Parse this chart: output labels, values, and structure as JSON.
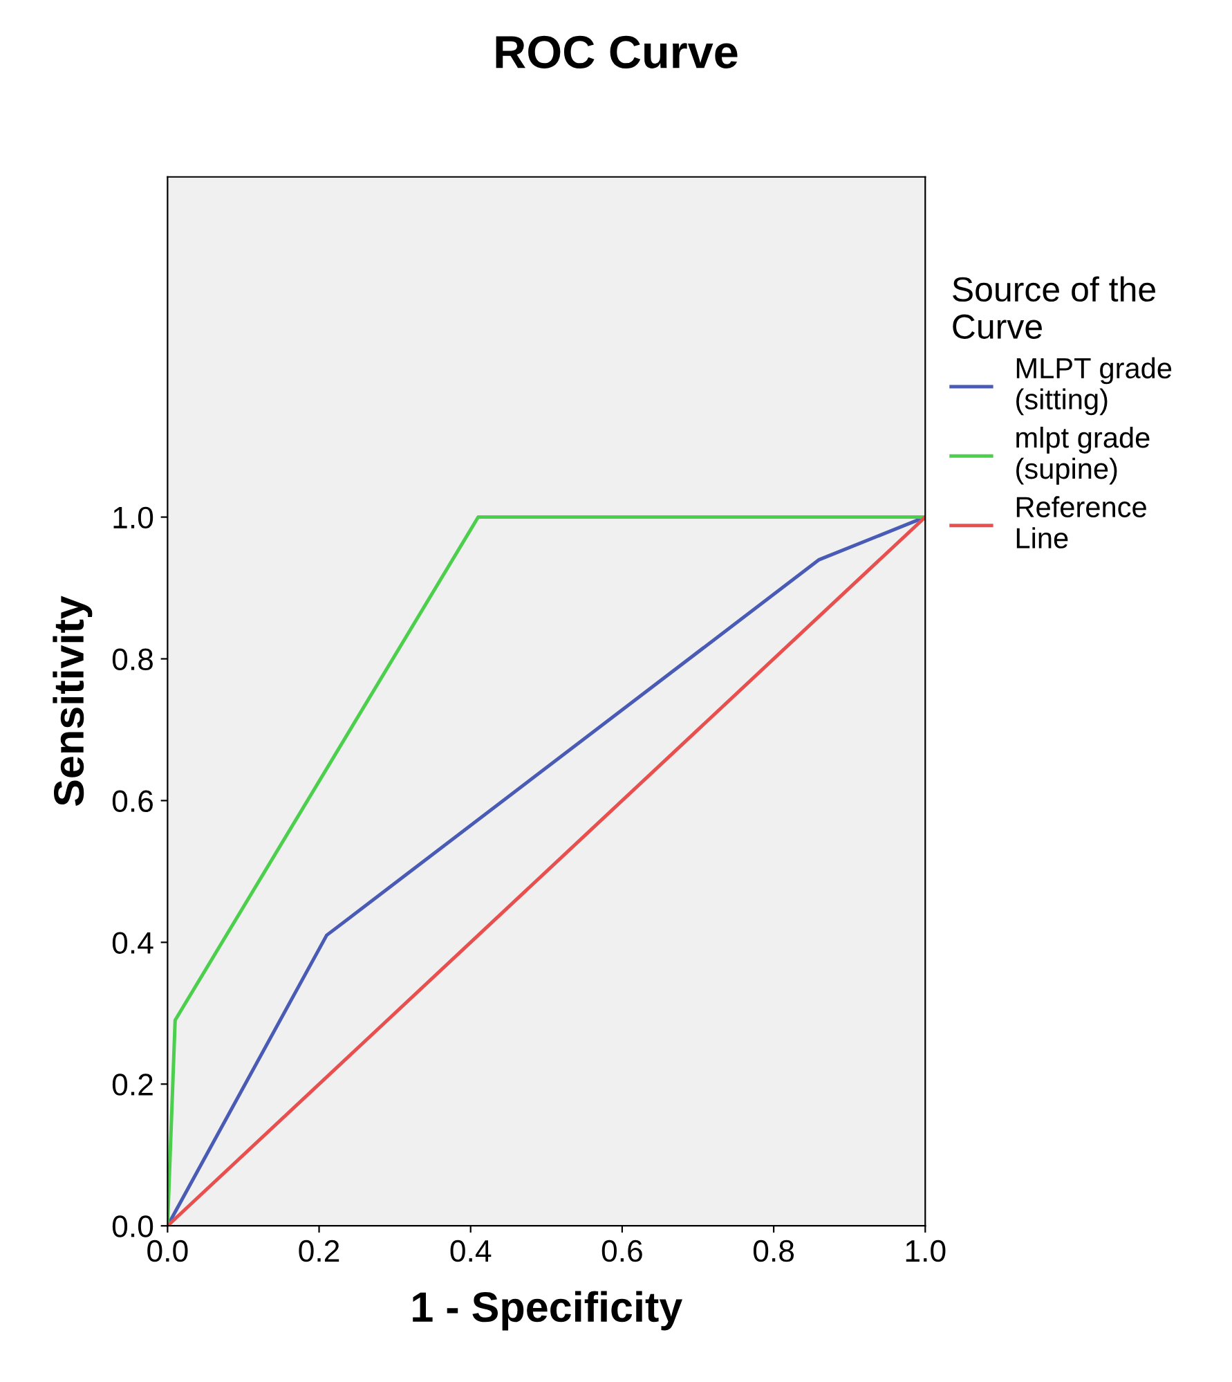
{
  "chart_data": {
    "type": "line",
    "title": "ROC Curve",
    "xlabel": "1 - Specificity",
    "ylabel": "Sensitivity",
    "legend_title": "Source of the\nCurve",
    "xlim": [
      0,
      1.0
    ],
    "ylim": [
      0,
      1.48
    ],
    "xticks": [
      {
        "value": 0,
        "label": "0.0"
      },
      {
        "value": 0.2,
        "label": "0.2"
      },
      {
        "value": 0.4,
        "label": "0.4"
      },
      {
        "value": 0.6,
        "label": "0.6"
      },
      {
        "value": 0.8,
        "label": "0.8"
      },
      {
        "value": 1.0,
        "label": "1.0"
      }
    ],
    "yticks": [
      {
        "value": 0,
        "label": "0.0"
      },
      {
        "value": 0.2,
        "label": "0.2"
      },
      {
        "value": 0.4,
        "label": "0.4"
      },
      {
        "value": 0.6,
        "label": "0.6"
      },
      {
        "value": 0.8,
        "label": "0.8"
      },
      {
        "value": 1.0,
        "label": "1.0"
      }
    ],
    "series": [
      {
        "name": "MLPT grade\n(sitting)",
        "color": "#4a5bb5",
        "x": [
          0,
          0.21,
          0.86,
          1.0
        ],
        "values": [
          0,
          0.41,
          0.94,
          1.0
        ]
      },
      {
        "name": "mlpt grade\n(supine)",
        "color": "#4ccf4c",
        "x": [
          0,
          0.01,
          0.41,
          1.0
        ],
        "values": [
          0,
          0.29,
          1.0,
          1.0
        ]
      },
      {
        "name": "Reference\nLine",
        "color": "#e8504f",
        "x": [
          0,
          1.0
        ],
        "values": [
          0,
          1.0
        ]
      }
    ],
    "grid": false,
    "legend": "right",
    "marker": "none",
    "line_style": "solid"
  }
}
